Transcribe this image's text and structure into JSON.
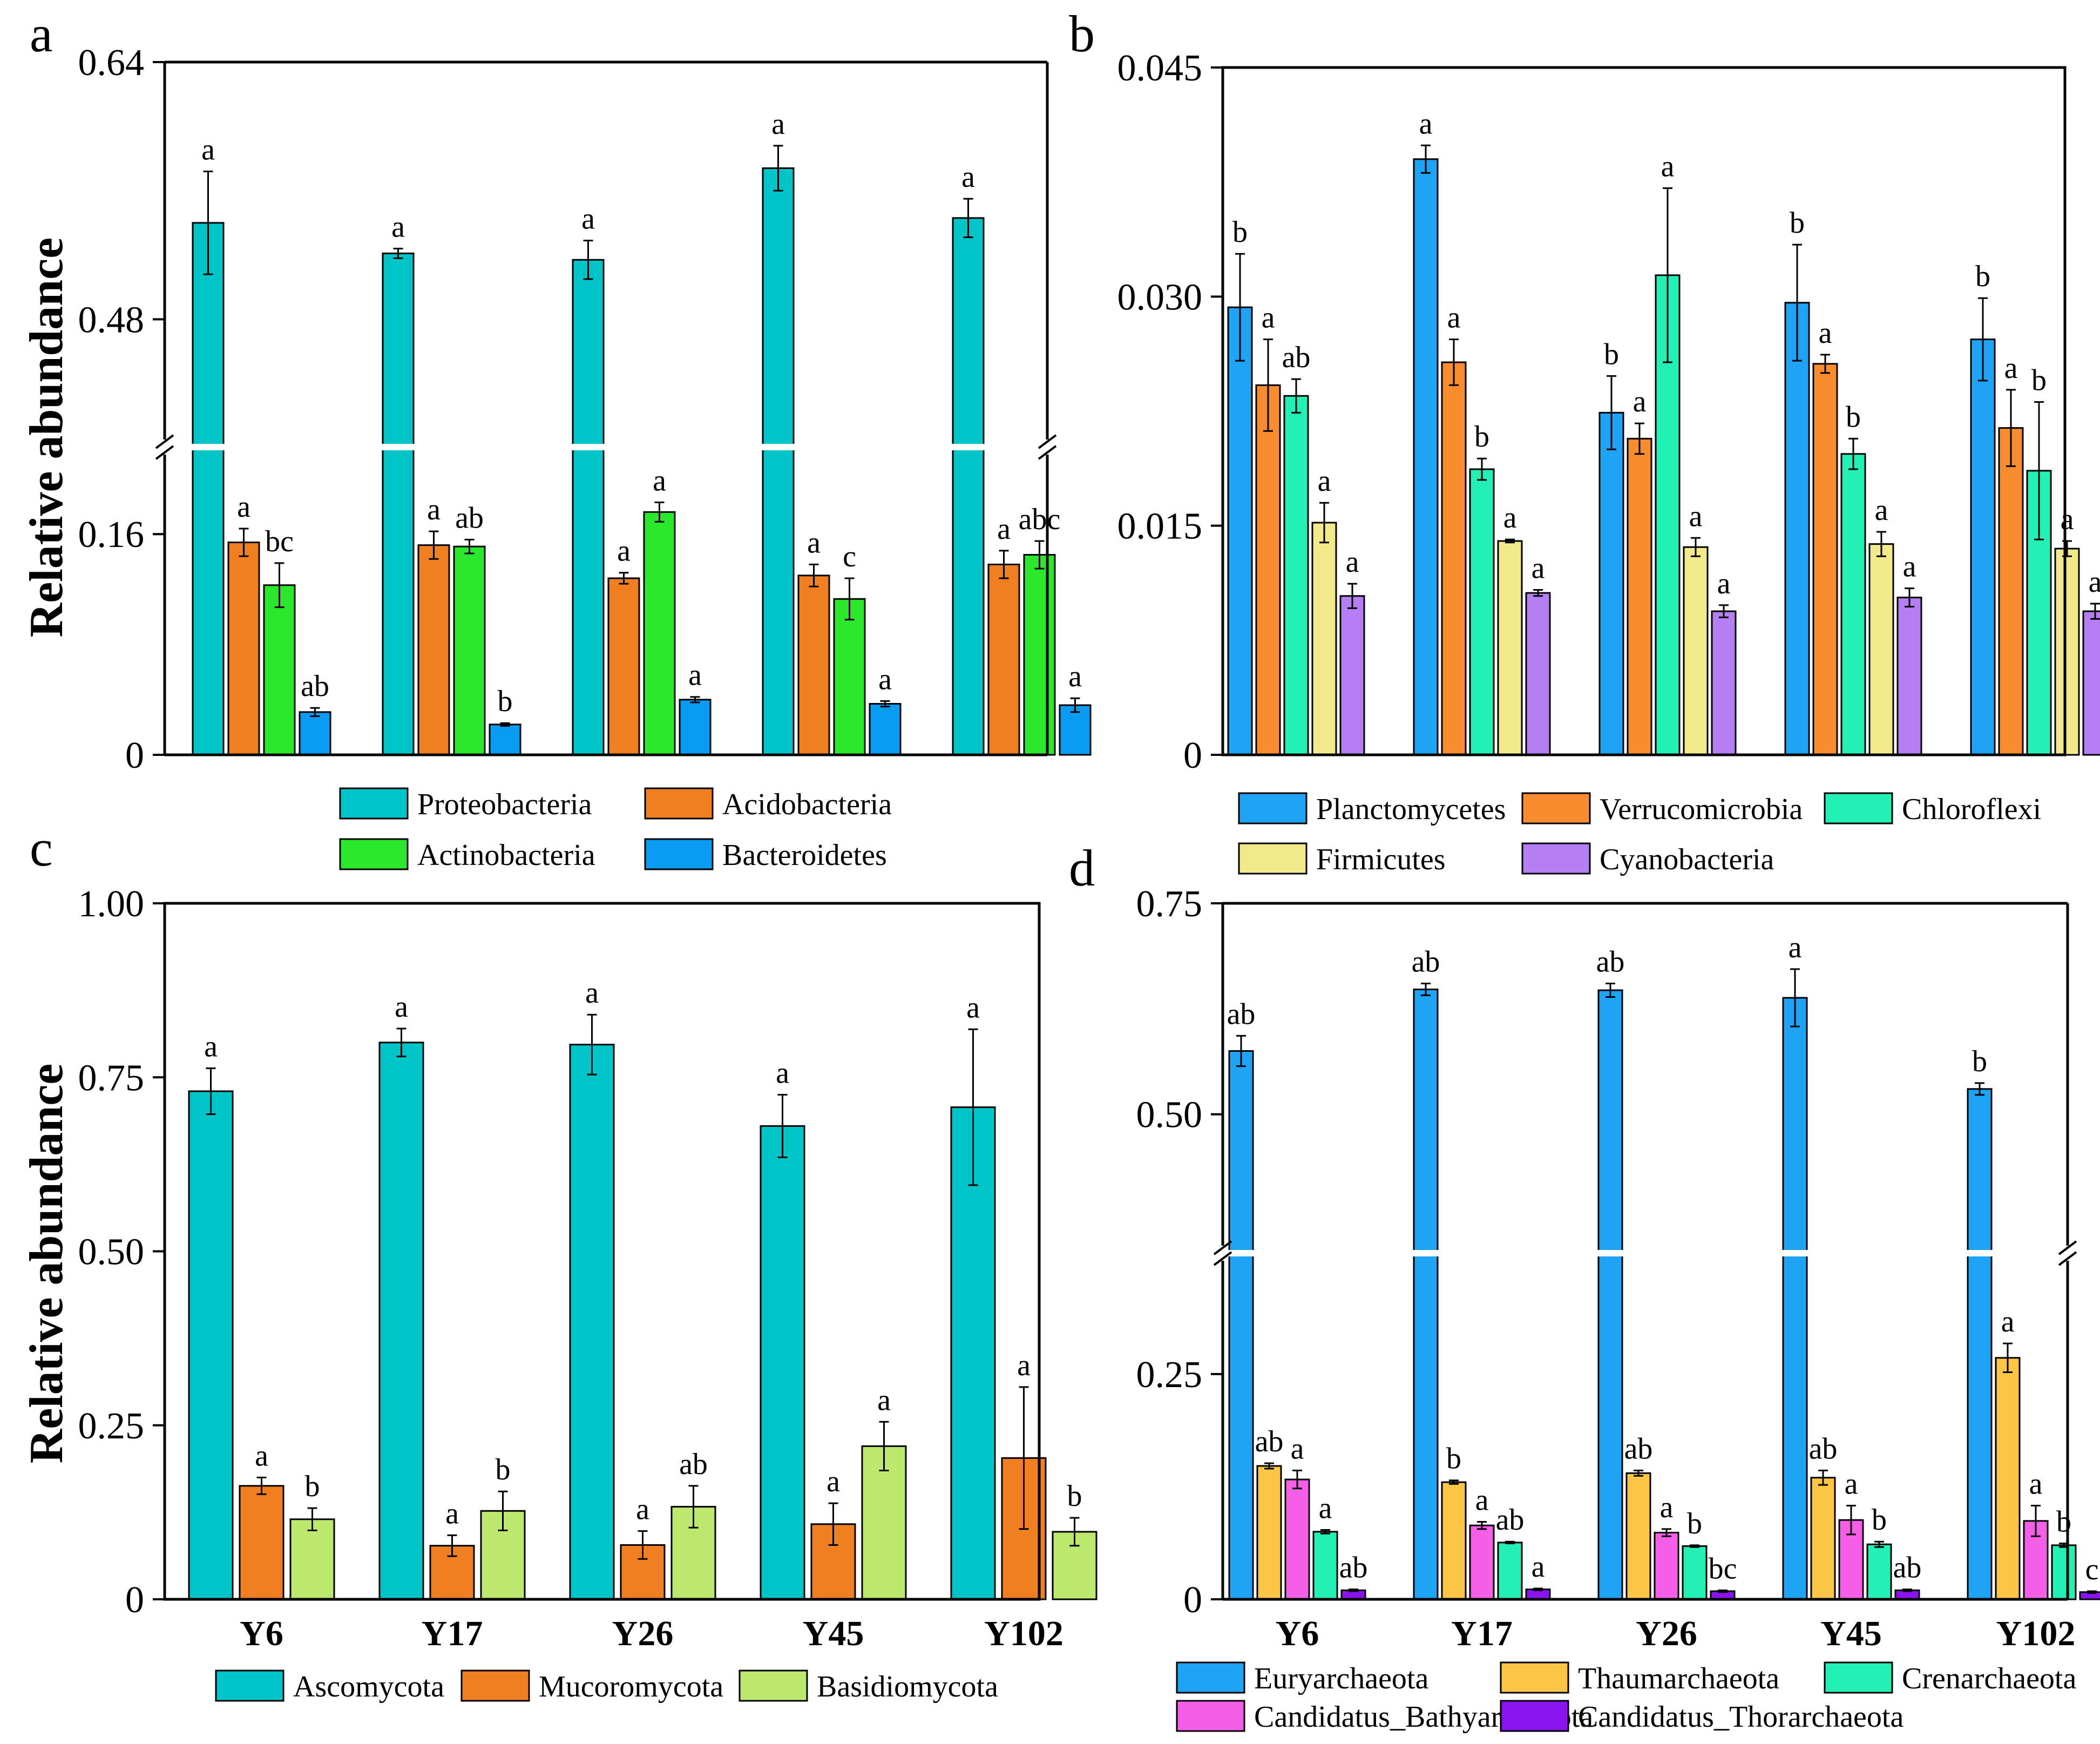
{
  "chart_data": [
    {
      "panel": "a",
      "type": "bar",
      "categories": [
        "Y6",
        "Y17",
        "Y26",
        "Y45",
        "Y102"
      ],
      "ylabel": "Relative abundance",
      "yticks": [
        "0",
        "0.16",
        "0.48",
        "0.64"
      ],
      "axis_break": {
        "lower_range": [
          0,
          0.2
        ],
        "upper_range": [
          0.42,
          0.64
        ]
      },
      "series": [
        {
          "name": "Proteobacteria",
          "color": "#00C5C8",
          "values": [
            0.54,
            0.521,
            0.517,
            0.574,
            0.543
          ],
          "errors": [
            0.032,
            0.003,
            0.012,
            0.014,
            0.012
          ],
          "letters": [
            "a",
            "a",
            "a",
            "a",
            "a"
          ]
        },
        {
          "name": "Acidobacteria",
          "color": "#F07F22",
          "values": [
            0.154,
            0.152,
            0.128,
            0.13,
            0.138
          ],
          "errors": [
            0.01,
            0.01,
            0.004,
            0.008,
            0.01
          ],
          "letters": [
            "a",
            "a",
            "a",
            "a",
            "a"
          ]
        },
        {
          "name": "Actinobacteria",
          "color": "#2CE82C",
          "values": [
            0.123,
            0.151,
            0.176,
            0.113,
            0.145
          ],
          "errors": [
            0.016,
            0.005,
            0.007,
            0.015,
            0.01
          ],
          "letters": [
            "bc",
            "ab",
            "a",
            "c",
            "abc"
          ]
        },
        {
          "name": "Bacteroidetes",
          "color": "#0A9BF2",
          "values": [
            0.031,
            0.022,
            0.04,
            0.037,
            0.036
          ],
          "errors": [
            0.003,
            0.001,
            0.002,
            0.002,
            0.005
          ],
          "letters": [
            "ab",
            "b",
            "a",
            "a",
            "a"
          ]
        }
      ]
    },
    {
      "panel": "b",
      "type": "bar",
      "categories": [
        "Y6",
        "Y17",
        "Y26",
        "Y45",
        "Y102"
      ],
      "ylabel": "",
      "yticks": [
        "0",
        "0.015",
        "0.030",
        "0.045"
      ],
      "ylim": [
        0,
        0.045
      ],
      "series": [
        {
          "name": "Planctomycetes",
          "color": "#1EA3F5",
          "values": [
            0.0293,
            0.039,
            0.0224,
            0.0296,
            0.0272
          ],
          "errors": [
            0.0035,
            0.0009,
            0.0024,
            0.0038,
            0.0027
          ],
          "letters": [
            "b",
            "a",
            "b",
            "b",
            "b"
          ]
        },
        {
          "name": "Verrucomicrobia",
          "color": "#F88C2E",
          "values": [
            0.0242,
            0.0257,
            0.0207,
            0.0256,
            0.0214
          ],
          "errors": [
            0.003,
            0.0015,
            0.001,
            0.0006,
            0.0025
          ],
          "letters": [
            "a",
            "a",
            "a",
            "a",
            "a"
          ]
        },
        {
          "name": "Chloroflexi",
          "color": "#22F0B4",
          "values": [
            0.0235,
            0.0187,
            0.0314,
            0.0197,
            0.0186
          ],
          "errors": [
            0.0011,
            0.0007,
            0.0057,
            0.001,
            0.0045
          ],
          "letters": [
            "ab",
            "b",
            "a",
            "b",
            "b"
          ]
        },
        {
          "name": "Firmicutes",
          "color": "#F2EA8A",
          "values": [
            0.0152,
            0.014,
            0.0136,
            0.0138,
            0.0135
          ],
          "errors": [
            0.0013,
            0.0001,
            0.0006,
            0.0008,
            0.0005
          ],
          "letters": [
            "a",
            "a",
            "a",
            "a",
            "a"
          ]
        },
        {
          "name": "Cyanobacteria",
          "color": "#B57EF2",
          "values": [
            0.0104,
            0.0106,
            0.0094,
            0.0103,
            0.0094
          ],
          "errors": [
            0.0008,
            0.0002,
            0.0004,
            0.0006,
            0.0005
          ],
          "letters": [
            "a",
            "a",
            "a",
            "a",
            "a"
          ]
        }
      ]
    },
    {
      "panel": "c",
      "type": "bar",
      "categories": [
        "Y6",
        "Y17",
        "Y26",
        "Y45",
        "Y102"
      ],
      "ylabel": "Relative abundance",
      "yticks": [
        "0",
        "0.25",
        "0.50",
        "0.75",
        "1.00"
      ],
      "ylim": [
        0,
        1.0
      ],
      "series": [
        {
          "name": "Ascomycota",
          "color": "#00C5C8",
          "values": [
            0.73,
            0.8,
            0.797,
            0.68,
            0.707
          ],
          "errors": [
            0.033,
            0.02,
            0.043,
            0.045,
            0.112
          ],
          "letters": [
            "a",
            "a",
            "a",
            "a",
            "a"
          ]
        },
        {
          "name": "Mucoromycota",
          "color": "#F07F22",
          "values": [
            0.163,
            0.077,
            0.078,
            0.108,
            0.203
          ],
          "errors": [
            0.012,
            0.015,
            0.02,
            0.03,
            0.102
          ],
          "letters": [
            "a",
            "a",
            "a",
            "a",
            "a"
          ]
        },
        {
          "name": "Basidiomycota",
          "color": "#BDE86E",
          "values": [
            0.115,
            0.127,
            0.133,
            0.22,
            0.097
          ],
          "errors": [
            0.016,
            0.028,
            0.03,
            0.035,
            0.02
          ],
          "letters": [
            "b",
            "b",
            "ab",
            "a",
            "b"
          ]
        }
      ]
    },
    {
      "panel": "d",
      "type": "bar",
      "categories": [
        "Y6",
        "Y17",
        "Y26",
        "Y45",
        "Y102"
      ],
      "ylabel": "",
      "yticks": [
        "0",
        "0.25",
        "0.50",
        "0.75"
      ],
      "axis_break": {
        "lower_range": [
          0,
          0.35
        ],
        "upper_range": [
          0.4,
          0.75
        ]
      },
      "series": [
        {
          "name": "Euryarchaeota",
          "color": "#1EA3F5",
          "values": [
            0.575,
            0.648,
            0.647,
            0.638,
            0.53
          ],
          "errors": [
            0.018,
            0.007,
            0.008,
            0.034,
            0.007
          ],
          "letters": [
            "ab",
            "ab",
            "ab",
            "a",
            "b"
          ]
        },
        {
          "name": "Thaumarchaeota",
          "color": "#FBC645",
          "values": [
            0.148,
            0.13,
            0.14,
            0.135,
            0.268
          ],
          "errors": [
            0.003,
            0.002,
            0.003,
            0.008,
            0.016
          ],
          "letters": [
            "ab",
            "b",
            "ab",
            "ab",
            "a"
          ]
        },
        {
          "name": "Candidatus_Bathyarchaeota",
          "color": "#F55FE8",
          "values": [
            0.133,
            0.082,
            0.074,
            0.088,
            0.087
          ],
          "errors": [
            0.01,
            0.004,
            0.004,
            0.016,
            0.017
          ],
          "letters": [
            "a",
            "a",
            "a",
            "a",
            "a"
          ]
        },
        {
          "name": "Crenarchaeota",
          "color": "#22F0B4",
          "values": [
            0.075,
            0.063,
            0.059,
            0.061,
            0.06
          ],
          "errors": [
            0.002,
            0.001,
            0.001,
            0.003,
            0.002
          ],
          "letters": [
            "a",
            "ab",
            "b",
            "b",
            "b"
          ]
        },
        {
          "name": "Candidatus_Thorarchaeota",
          "color": "#8A14F0",
          "values": [
            0.01,
            0.011,
            0.009,
            0.01,
            0.008
          ],
          "errors": [
            0.001,
            0.001,
            0.001,
            0.001,
            0.001
          ],
          "letters": [
            "ab",
            "a",
            "bc",
            "ab",
            "c"
          ]
        }
      ]
    }
  ]
}
